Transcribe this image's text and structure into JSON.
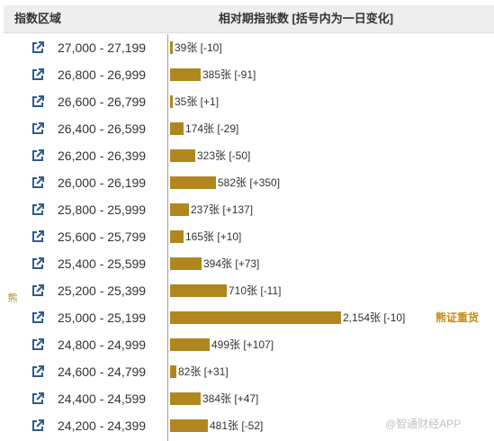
{
  "header": {
    "col_range": "指数区域",
    "col_change": "相对期指张数 [括号内为一日变化]"
  },
  "side_label": "熊",
  "annotation": "熊证重货",
  "watermark": "@智通财经APP",
  "colors": {
    "bar": "#b0871f",
    "annotation": "#c98a12"
  },
  "icon": "external-link-icon",
  "rows": [
    {
      "range": "27,000 - 27,199",
      "count": 39,
      "label": "39张 [-10]"
    },
    {
      "range": "26,800 - 26,999",
      "count": 385,
      "label": "385张 [-91]"
    },
    {
      "range": "26,600 - 26,799",
      "count": 35,
      "label": "35张 [+1]"
    },
    {
      "range": "26,400 - 26,599",
      "count": 174,
      "label": "174张 [-29]"
    },
    {
      "range": "26,200 - 26,399",
      "count": 323,
      "label": "323张 [-50]"
    },
    {
      "range": "26,000 - 26,199",
      "count": 582,
      "label": "582张 [+350]"
    },
    {
      "range": "25,800 - 25,999",
      "count": 237,
      "label": "237张 [+137]"
    },
    {
      "range": "25,600 - 25,799",
      "count": 165,
      "label": "165张 [+10]"
    },
    {
      "range": "25,400 - 25,599",
      "count": 394,
      "label": "394张 [+73]"
    },
    {
      "range": "25,200 - 25,399",
      "count": 710,
      "label": "710张 [-11]"
    },
    {
      "range": "25,000 - 25,199",
      "count": 2154,
      "label": "2,154张 [-10]"
    },
    {
      "range": "24,800 - 24,999",
      "count": 499,
      "label": "499张 [+107]"
    },
    {
      "range": "24,600 - 24,799",
      "count": 82,
      "label": "82张 [+31]"
    },
    {
      "range": "24,400 - 24,599",
      "count": 384,
      "label": "384张 [+47]"
    },
    {
      "range": "24,200 - 24,399",
      "count": 481,
      "label": "481张 [-52]"
    }
  ]
}
